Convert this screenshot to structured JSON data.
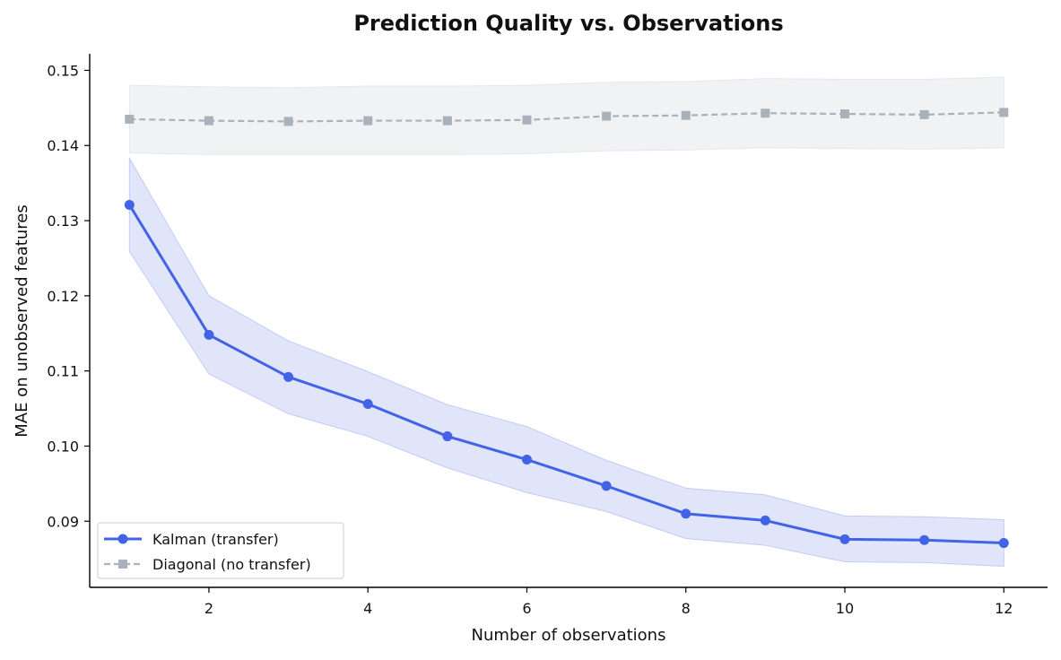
{
  "chart_data": {
    "type": "line",
    "title": "Prediction Quality vs. Observations",
    "xlabel": "Number of observations",
    "ylabel": "MAE on unobserved features",
    "xlim": [
      0.5,
      12.55
    ],
    "ylim": [
      0.0812,
      0.1522
    ],
    "xticks": [
      2,
      4,
      6,
      8,
      10,
      12
    ],
    "yticks": [
      0.09,
      0.1,
      0.11,
      0.12,
      0.13,
      0.14,
      0.15
    ],
    "grid": false,
    "legend_position": "lower-left",
    "x": [
      1,
      2,
      3,
      4,
      5,
      6,
      7,
      8,
      9,
      10,
      11,
      12
    ],
    "series": [
      {
        "name": "Kalman (transfer)",
        "color": "#4363e6",
        "band_color": "#c3cbf5",
        "line_style": "solid",
        "marker": "circle",
        "values": [
          0.1321,
          0.1148,
          0.1092,
          0.1056,
          0.1013,
          0.0982,
          0.0947,
          0.091,
          0.0901,
          0.0876,
          0.0875,
          0.0871
        ],
        "upper": [
          0.1383,
          0.12,
          0.114,
          0.1099,
          0.1055,
          0.1026,
          0.0981,
          0.0944,
          0.0935,
          0.0907,
          0.0906,
          0.0902
        ],
        "lower": [
          0.1259,
          0.1096,
          0.1043,
          0.1013,
          0.0971,
          0.0938,
          0.0913,
          0.0877,
          0.0868,
          0.0846,
          0.0845,
          0.084
        ]
      },
      {
        "name": "Diagonal (no transfer)",
        "color": "#a9b2ba",
        "band_color": "#e4e8eb",
        "line_style": "dashed",
        "marker": "square",
        "values": [
          0.1435,
          0.1433,
          0.1432,
          0.1433,
          0.1433,
          0.1434,
          0.1439,
          0.144,
          0.1443,
          0.1442,
          0.1441,
          0.1444
        ],
        "upper": [
          0.148,
          0.1478,
          0.1477,
          0.1479,
          0.1479,
          0.148,
          0.1484,
          0.1485,
          0.1489,
          0.1488,
          0.1488,
          0.1491
        ],
        "lower": [
          0.139,
          0.1388,
          0.1388,
          0.1388,
          0.1388,
          0.1389,
          0.1393,
          0.1394,
          0.1397,
          0.1396,
          0.1395,
          0.1397
        ]
      }
    ]
  }
}
